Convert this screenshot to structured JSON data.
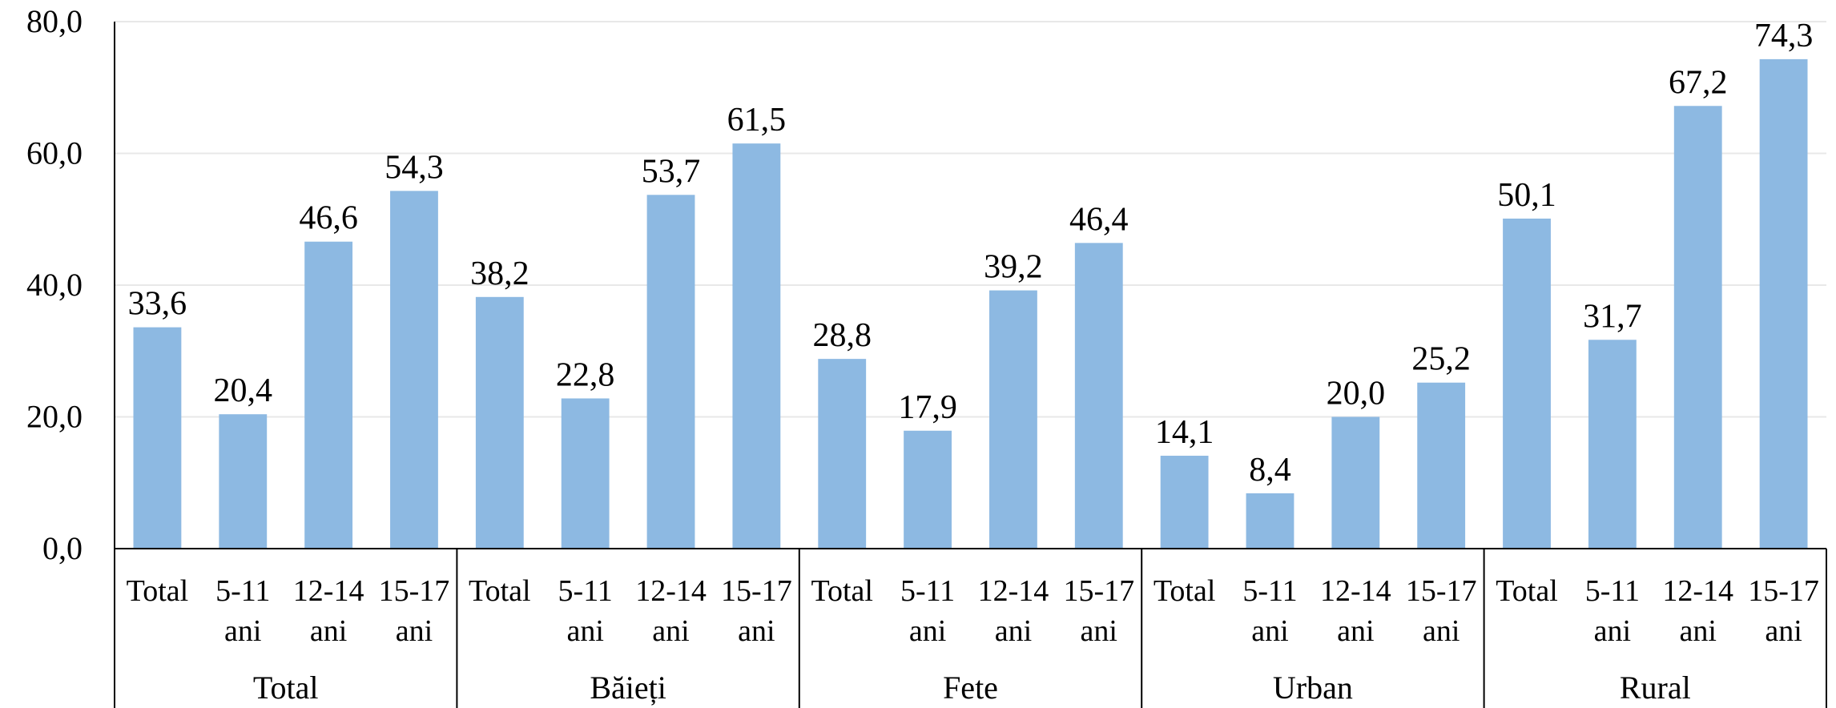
{
  "chart_data": {
    "type": "bar",
    "y_ticks": [
      "0,0",
      "20,0",
      "40,0",
      "60,0",
      "80,0"
    ],
    "ylim": [
      0,
      80
    ],
    "grid": true,
    "bar_color": "#8DB9E2",
    "grid_color": "#E8E8E8",
    "axis_color": "#000000",
    "categories": [
      [
        "Total"
      ],
      [
        "5-11",
        "ani"
      ],
      [
        "12-14",
        "ani"
      ],
      [
        "15-17",
        "ani"
      ],
      [
        "Total"
      ],
      [
        "5-11",
        "ani"
      ],
      [
        "12-14",
        "ani"
      ],
      [
        "15-17",
        "ani"
      ],
      [
        "Total"
      ],
      [
        "5-11",
        "ani"
      ],
      [
        "12-14",
        "ani"
      ],
      [
        "15-17",
        "ani"
      ],
      [
        "Total"
      ],
      [
        "5-11",
        "ani"
      ],
      [
        "12-14",
        "ani"
      ],
      [
        "15-17",
        "ani"
      ],
      [
        "Total"
      ],
      [
        "5-11",
        "ani"
      ],
      [
        "12-14",
        "ani"
      ],
      [
        "15-17",
        "ani"
      ]
    ],
    "groups": [
      "Total",
      "Băieți",
      "Fete",
      "Urban",
      "Rural"
    ],
    "values": [
      33.6,
      20.4,
      46.6,
      54.3,
      38.2,
      22.8,
      53.7,
      61.5,
      28.8,
      17.9,
      39.2,
      46.4,
      14.1,
      8.4,
      20.0,
      25.2,
      50.1,
      31.7,
      67.2,
      74.3
    ],
    "value_labels": [
      "33,6",
      "20,4",
      "46,6",
      "54,3",
      "38,2",
      "22,8",
      "53,7",
      "61,5",
      "28,8",
      "17,9",
      "39,2",
      "46,4",
      "14,1",
      "8,4",
      "20,0",
      "25,2",
      "50,1",
      "31,7",
      "67,2",
      "74,3"
    ]
  }
}
